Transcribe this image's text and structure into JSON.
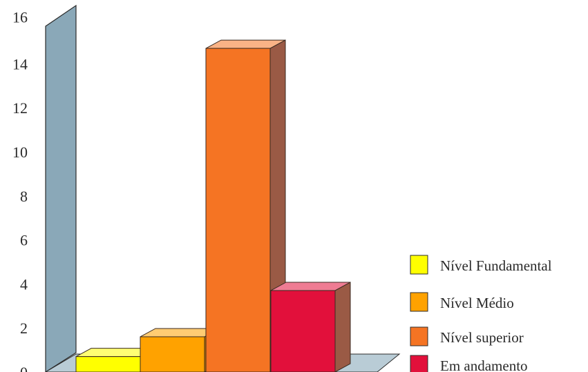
{
  "chart_data": {
    "type": "bar",
    "categories": [
      "Nível Fundamental",
      "Nível Médio",
      "Nível superior",
      "Em andamento"
    ],
    "values": [
      0.7,
      1.6,
      14.7,
      3.7
    ],
    "ylim": [
      0,
      16
    ],
    "yticks": [
      "0",
      "2",
      "4",
      "6",
      "8",
      "10",
      "12",
      "14",
      "16"
    ],
    "legend_position": "right",
    "colors": {
      "Nível Fundamental": "#ffff00",
      "Nível Médio": "#ffa200",
      "Nível superior": "#f57423",
      "Em andamento": "#e2103b",
      "wall": "#8aa8b8",
      "floor": "#b9ccd6"
    }
  }
}
